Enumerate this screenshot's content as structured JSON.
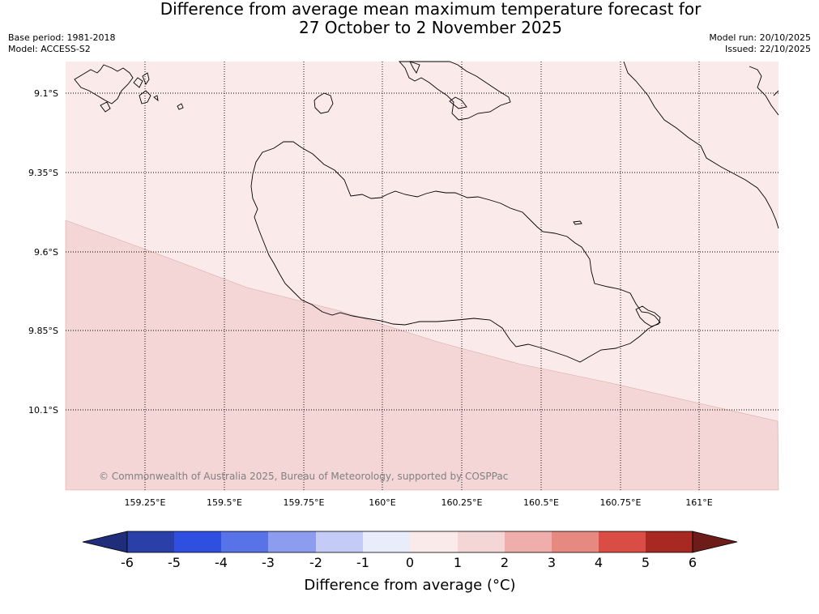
{
  "title": {
    "line1": "Difference from average mean maximum temperature forecast for",
    "line2": "27 October to 2 November 2025"
  },
  "meta": {
    "base_period": "Base period: 1981-2018",
    "model": "Model: ACCESS-S2",
    "model_run": "Model run: 20/10/2025",
    "issued": "Issued: 22/10/2025"
  },
  "map": {
    "latitudes": [
      "9.1°S",
      "9.35°S",
      "9.6°S",
      "9.85°S",
      "10.1°S"
    ],
    "longitudes": [
      "159.25°E",
      "159.5°E",
      "159.75°E",
      "160°E",
      "160.25°E",
      "160.5°E",
      "160.75°E",
      "161°E"
    ],
    "copyright": "© Commonwealth of Australia 2025, Bureau of Meteorology, supported by COSPPac",
    "fill_colors": {
      "anomaly_0_to_1": "#fbeaea",
      "anomaly_1_to_2": "#f4d6d6"
    }
  },
  "colorbar": {
    "ticks": [
      "-6",
      "-5",
      "-4",
      "-3",
      "-2",
      "-1",
      "0",
      "1",
      "2",
      "3",
      "4",
      "5",
      "6"
    ],
    "title": "Difference from average (°C)",
    "colors": [
      "#1f2d7a",
      "#2a3fa8",
      "#2e4fe0",
      "#5872e8",
      "#8c9cee",
      "#c4cbf7",
      "#e9ecfb",
      "#fbeaea",
      "#f4d6d6",
      "#efaeab",
      "#e68a81",
      "#d94d45",
      "#a82822",
      "#6e1c1a"
    ]
  }
}
